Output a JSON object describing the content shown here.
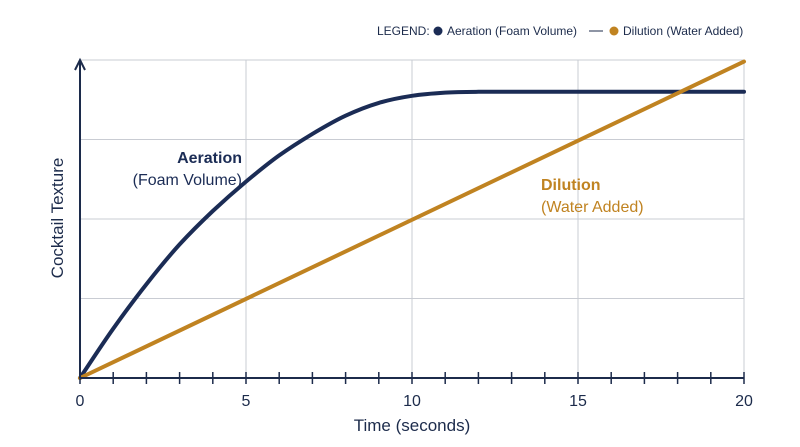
{
  "chart_data": {
    "type": "line",
    "title": "",
    "xlabel": "Time (seconds)",
    "ylabel": "Cocktail Texture",
    "xlim": [
      0,
      20
    ],
    "ylim": [
      0,
      4
    ],
    "x_ticks": [
      "0",
      "5",
      "10",
      "15",
      "20"
    ],
    "minor_tick_step": 1,
    "grid": true,
    "legend": {
      "position": "top-right",
      "prefix": "LEGEND:",
      "entries": [
        "Aeration (Foam Volume)",
        "Dilution (Water Added)"
      ]
    },
    "series": [
      {
        "name": "Aeration (Foam Volume)",
        "color": "#1b2c55",
        "x": [
          0,
          1,
          2,
          3,
          4,
          5,
          6,
          7,
          8,
          9,
          10,
          11,
          12,
          14,
          16,
          18,
          20
        ],
        "y": [
          0,
          0.62,
          1.18,
          1.68,
          2.1,
          2.47,
          2.8,
          3.07,
          3.3,
          3.46,
          3.55,
          3.59,
          3.6,
          3.6,
          3.6,
          3.6,
          3.6
        ]
      },
      {
        "name": "Dilution (Water Added)",
        "color": "#c08321",
        "x": [
          0,
          20
        ],
        "y": [
          0,
          3.98
        ]
      }
    ],
    "annotations": [
      {
        "title": "Aeration",
        "subtitle": "(Foam Volume)",
        "series": 0
      },
      {
        "title": "Dilution",
        "subtitle": "(Water Added)",
        "series": 1
      }
    ]
  }
}
